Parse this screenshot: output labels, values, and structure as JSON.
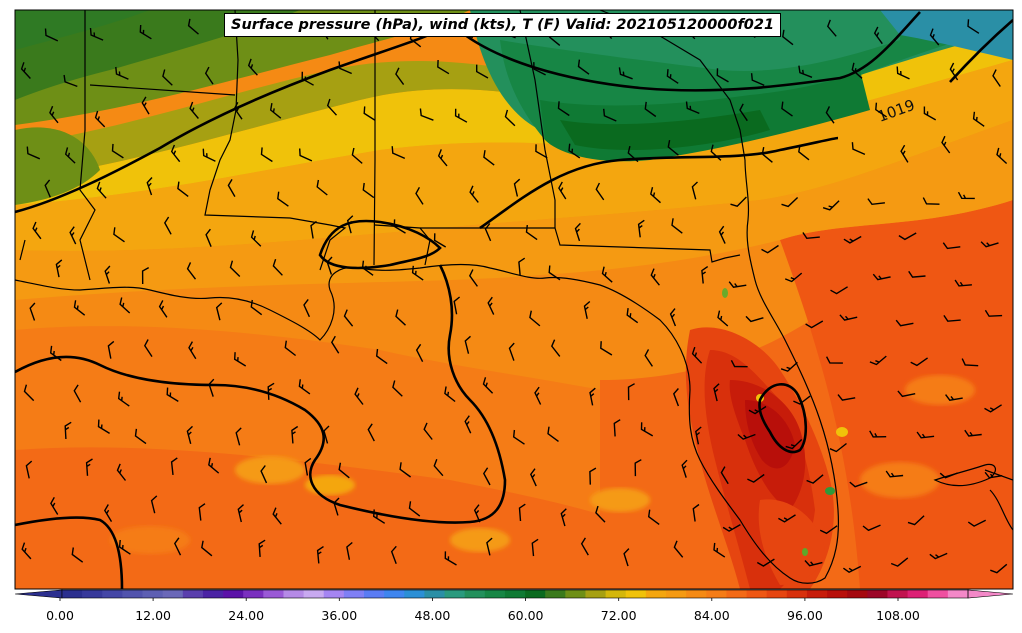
{
  "title": "Surface pressure (hPa), wind (kts), T (F) Valid: 202105120000f021",
  "isobar_labels": [
    "1019"
  ],
  "colorbar": {
    "tick_labels": [
      "0.00",
      "12.00",
      "24.00",
      "36.00",
      "48.00",
      "60.00",
      "72.00",
      "84.00",
      "96.00",
      "108.00"
    ],
    "min": -6,
    "max": 120,
    "step": 3,
    "extend": "both",
    "colors": [
      "#2b2f8f",
      "#37399b",
      "#4446a6",
      "#5153ad",
      "#5d5fb3",
      "#6a68b8",
      "#5a3fad",
      "#4b23a4",
      "#5b12a8",
      "#7a2fbf",
      "#9a59d6",
      "#b58ae6",
      "#c8a9f0",
      "#a585f2",
      "#7f7ff5",
      "#5a7cf4",
      "#3e85ef",
      "#2b8fd6",
      "#2a8fa6",
      "#2a9a7e",
      "#23905c",
      "#178645",
      "#0f7a34",
      "#0a6a1f",
      "#3a7a1c",
      "#6e8f16",
      "#a6a012",
      "#d4b70b",
      "#f0c20a",
      "#f4a60f",
      "#f59a12",
      "#f58a14",
      "#f57c16",
      "#f36a16",
      "#ef5713",
      "#e64510",
      "#d8300c",
      "#c71c0a",
      "#b80f0a",
      "#a5080f",
      "#9c0628",
      "#c1124f",
      "#dd1f75",
      "#ef4fa0",
      "#f388c8"
    ]
  }
}
